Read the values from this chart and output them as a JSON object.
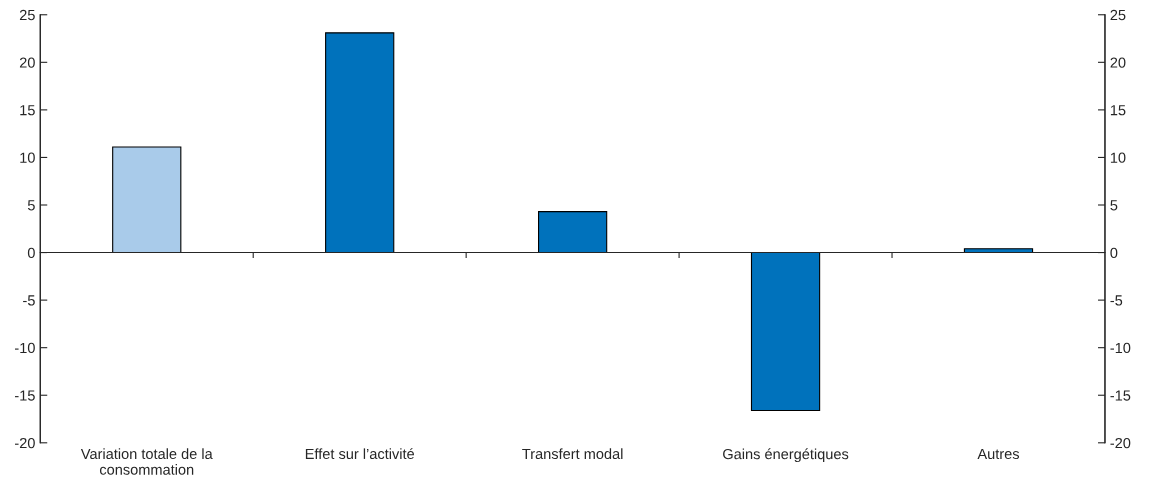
{
  "chart_data": {
    "type": "bar",
    "categories": [
      "Variation totale de la\nconsommation",
      "Effet sur l’activité",
      "Transfert modal",
      "Gains énergétiques",
      "Autres"
    ],
    "values": [
      11.1,
      23.1,
      4.3,
      -16.6,
      0.4
    ],
    "colors": [
      "#a9cbea",
      "#0072bc",
      "#0072bc",
      "#0072bc",
      "#0072bc"
    ],
    "ylim": [
      -20,
      25
    ],
    "yticks": [
      -20,
      -15,
      -10,
      -5,
      0,
      5,
      10,
      15,
      20,
      25
    ],
    "y2lim": [
      -20,
      25
    ],
    "y2ticks": [
      -20,
      -15,
      -10,
      -5,
      0,
      5,
      10,
      15,
      20,
      25
    ],
    "legend": false
  }
}
